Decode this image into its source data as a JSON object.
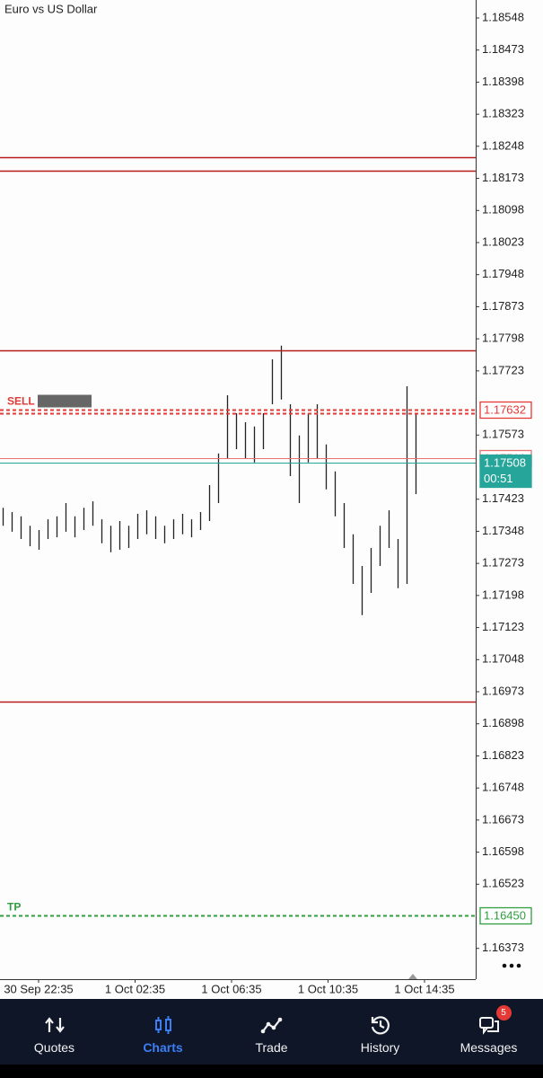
{
  "symbol": "Euro vs US Dollar",
  "chart_data": {
    "type": "ohlc",
    "ylim": [
      1.16301,
      1.1859
    ],
    "yticks": [
      1.18548,
      1.18473,
      1.18398,
      1.18323,
      1.18248,
      1.18173,
      1.18098,
      1.18023,
      1.17948,
      1.17873,
      1.17798,
      1.17723,
      1.17573,
      1.17423,
      1.17348,
      1.17273,
      1.17198,
      1.17123,
      1.17048,
      1.16973,
      1.16898,
      1.16823,
      1.16748,
      1.16673,
      1.16598,
      1.16523,
      1.16373
    ],
    "bar_color": "#222222",
    "bars": [
      [
        1.17361,
        1.17403
      ],
      [
        1.17347,
        1.17393
      ],
      [
        1.1733,
        1.17383
      ],
      [
        1.17313,
        1.17361
      ],
      [
        1.17305,
        1.17351
      ],
      [
        1.1733,
        1.17376
      ],
      [
        1.17334,
        1.17383
      ],
      [
        1.17347,
        1.17414
      ],
      [
        1.17334,
        1.17383
      ],
      [
        1.17351,
        1.17403
      ],
      [
        1.17361,
        1.17418
      ],
      [
        1.1732,
        1.17376
      ],
      [
        1.17299,
        1.17361
      ],
      [
        1.17305,
        1.17372
      ],
      [
        1.17309,
        1.17361
      ],
      [
        1.1733,
        1.17389
      ],
      [
        1.17341,
        1.17397
      ],
      [
        1.1733,
        1.17383
      ],
      [
        1.1732,
        1.17361
      ],
      [
        1.1733,
        1.17376
      ],
      [
        1.17341,
        1.17389
      ],
      [
        1.17334,
        1.17376
      ],
      [
        1.17351,
        1.17393
      ],
      [
        1.17372,
        1.17456
      ],
      [
        1.17414,
        1.1753
      ],
      [
        1.17519,
        1.17666
      ],
      [
        1.1754,
        1.17624
      ],
      [
        1.17519,
        1.17603
      ],
      [
        1.17509,
        1.17593
      ],
      [
        1.1754,
        1.17624
      ],
      [
        1.17645,
        1.1775
      ],
      [
        1.17656,
        1.17782
      ],
      [
        1.17477,
        1.17645
      ],
      [
        1.17414,
        1.17572
      ],
      [
        1.17509,
        1.17624
      ],
      [
        1.17519,
        1.17645
      ],
      [
        1.17446,
        1.17551
      ],
      [
        1.17383,
        1.17488
      ],
      [
        1.17309,
        1.17414
      ],
      [
        1.17225,
        1.17341
      ],
      [
        1.17152,
        1.17267
      ],
      [
        1.17204,
        1.17309
      ],
      [
        1.17267,
        1.17361
      ],
      [
        1.17309,
        1.17397
      ],
      [
        1.17215,
        1.1733
      ],
      [
        1.17225,
        1.17687
      ],
      [
        1.17435,
        1.17624
      ]
    ],
    "time_labels": [
      "30 Sep 22:35",
      "1 Oct 02:35",
      "1 Oct 06:35",
      "1 Oct 10:35",
      "1 Oct 14:35"
    ],
    "levels": [
      {
        "price": 1.18223,
        "color": "#b71c1c",
        "style": "solid"
      },
      {
        "price": 1.18191,
        "color": "#b71c1c",
        "style": "solid"
      },
      {
        "price": 1.17771,
        "color": "#b71c1c",
        "style": "solid"
      },
      {
        "price": 1.1695,
        "color": "#b71c1c",
        "style": "solid"
      },
      {
        "price": 1.17632,
        "color": "#e53935",
        "style": "dashed",
        "label": "SELL",
        "tag": true
      },
      {
        "price": 1.17624,
        "color": "#e53935",
        "style": "dashed"
      },
      {
        "price": 1.17519,
        "color": "#e57373",
        "style": "thin",
        "tag": true
      },
      {
        "price": 1.17508,
        "color": "#26a69a",
        "style": "thin",
        "tag": true,
        "filled": true,
        "timer": "00:51"
      },
      {
        "price": 1.1645,
        "price_label": "1.16450",
        "color": "#2e9e3e",
        "style": "dashed",
        "label": "TP",
        "tag": true
      }
    ]
  },
  "nav": [
    {
      "label": "Quotes"
    },
    {
      "label": "Charts",
      "active": true
    },
    {
      "label": "Trade"
    },
    {
      "label": "History"
    },
    {
      "label": "Messages",
      "badge": 5
    }
  ]
}
